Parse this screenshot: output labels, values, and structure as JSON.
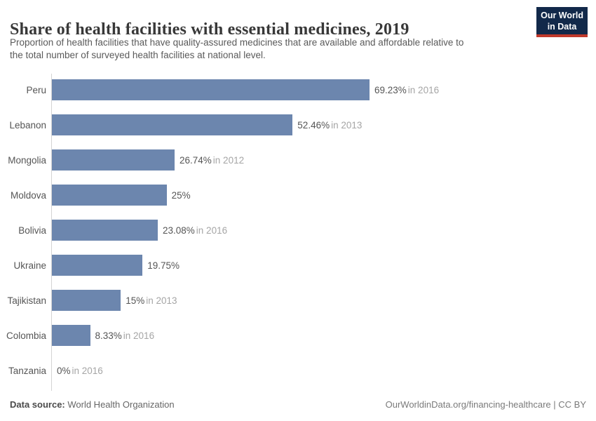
{
  "header": {
    "title": "Share of health facilities with essential medicines, 2019",
    "subtitle_lines": [
      "Proportion of health facilities that have quality-assured medicines that are available and affordable relative to",
      "the total number of surveyed health facilities at national level."
    ]
  },
  "logo": {
    "line1": "Our World",
    "line2": "in Data",
    "bg_color": "#12294a",
    "accent_color": "#c0392b"
  },
  "footer": {
    "datasource_label": "Data source:",
    "datasource_value": " World Health Organization",
    "attribution": "OurWorldinData.org/financing-healthcare | CC BY"
  },
  "chart_data": {
    "type": "bar",
    "orientation": "horizontal",
    "title": "Share of health facilities with essential medicines, 2019",
    "xlabel": "",
    "ylabel": "",
    "xlim": [
      0,
      69.23
    ],
    "grid": false,
    "legend": false,
    "bar_color": "#6c86ae",
    "categories": [
      "Peru",
      "Lebanon",
      "Mongolia",
      "Moldova",
      "Bolivia",
      "Ukraine",
      "Tajikistan",
      "Colombia",
      "Tanzania"
    ],
    "values": [
      69.23,
      52.46,
      26.74,
      25,
      23.08,
      19.75,
      15,
      8.33,
      0
    ],
    "value_labels": [
      "69.23%",
      "52.46%",
      "26.74%",
      "25%",
      "23.08%",
      "19.75%",
      "15%",
      "8.33%",
      "0%"
    ],
    "year_labels": [
      "in 2016",
      "in 2013",
      "in 2012",
      "",
      "in 2016",
      "",
      "in 2013",
      "in 2016",
      "in 2016"
    ]
  }
}
